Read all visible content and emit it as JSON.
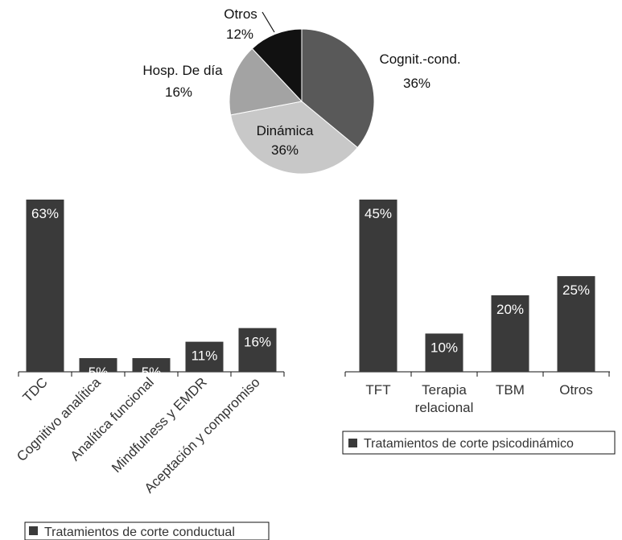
{
  "colors": {
    "pie": [
      "#595959",
      "#c8c8c8",
      "#a3a3a3",
      "#111111"
    ],
    "bar": "#3a3a3a",
    "bar_label": "#ffffff",
    "text": "#111111",
    "muted_text": "#333333"
  },
  "chart_data": [
    {
      "type": "pie",
      "slices": [
        {
          "label": "Cognit.-cond.",
          "value": 36
        },
        {
          "label": "Dinámica",
          "value": 36
        },
        {
          "label": "Hosp. De día",
          "value": 16
        },
        {
          "label": "Otros",
          "value": 12
        }
      ],
      "value_suffix": "%"
    },
    {
      "type": "bar",
      "categories": [
        "TDC",
        "Cognitivo analítica",
        "Analítica funcional",
        "Mindfulness y EMDR",
        "Aceptación y compromiso"
      ],
      "values": [
        63,
        5,
        5,
        11,
        16
      ],
      "data_labels": [
        "63%",
        "5%",
        "5%",
        "11%",
        "16%"
      ],
      "ylim": [
        0,
        63
      ],
      "legend": "Tratamientos de corte conductual",
      "legend_position": "bottom-left"
    },
    {
      "type": "bar",
      "categories": [
        "TFT",
        "Terapia relacional",
        "TBM",
        "Otros"
      ],
      "values": [
        45,
        10,
        20,
        25
      ],
      "data_labels": [
        "45%",
        "10%",
        "20%",
        "25%"
      ],
      "ylim": [
        0,
        45
      ],
      "legend": "Tratamientos de corte psicodinámico",
      "legend_position": "bottom"
    }
  ]
}
